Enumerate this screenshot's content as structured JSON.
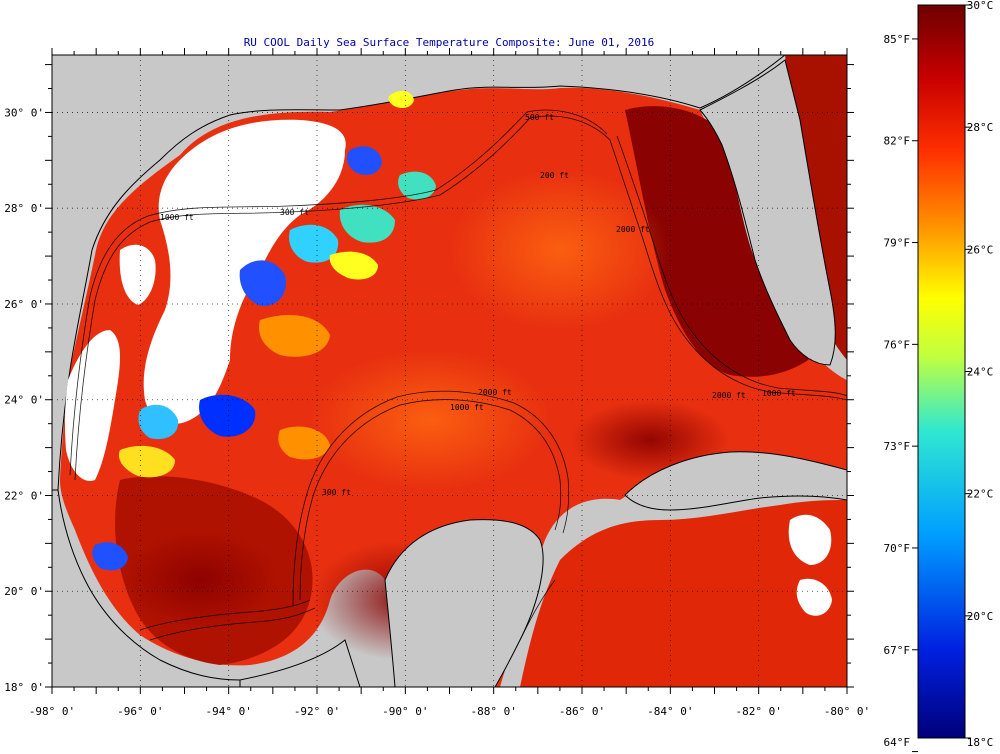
{
  "title": "RU COOL Daily Sea Surface Temperature Composite:  June 01, 2016",
  "map": {
    "lon_labels": [
      "-98° 0'",
      "-96° 0'",
      "-94° 0'",
      "-92° 0'",
      "-90° 0'",
      "-88° 0'",
      "-86° 0'",
      "-84° 0'",
      "-82° 0'",
      "-80° 0'"
    ],
    "lat_labels": [
      "30° 0'",
      "28° 0'",
      "26° 0'",
      "24° 0'",
      "22° 0'",
      "20° 0'",
      "18° 0'"
    ],
    "lon_range": [
      -98,
      -80
    ],
    "lat_range": [
      18,
      31.2
    ],
    "contour_labels": [
      "1000 ft",
      "300 ft",
      "500 ft",
      "200 ft",
      "2000 ft",
      "1000 ft",
      "300 ft",
      "2000 ft",
      "1000 ft",
      "2000 ft"
    ]
  },
  "colorbar": {
    "f_labels": [
      "85°F",
      "82°F",
      "79°F",
      "76°F",
      "73°F",
      "70°F",
      "67°F",
      "64°F"
    ],
    "c_labels": [
      "30°C",
      "28°C",
      "26°C",
      "24°C",
      "22°C",
      "20°C",
      "18°C"
    ],
    "c_range": [
      18,
      30
    ],
    "colors": {
      "warm_top": "#6e0000",
      "red": "#e02000",
      "orange": "#ff8c00",
      "yellow": "#ffff00",
      "cyan": "#00d0ff",
      "blue": "#0030ff",
      "navy": "#00007a"
    }
  },
  "colors": {
    "land": "#c8c8c8",
    "cloud": "#ffffff",
    "sea_base": "#e83010",
    "sea_dark": "#a81000",
    "coast": "#000000"
  }
}
